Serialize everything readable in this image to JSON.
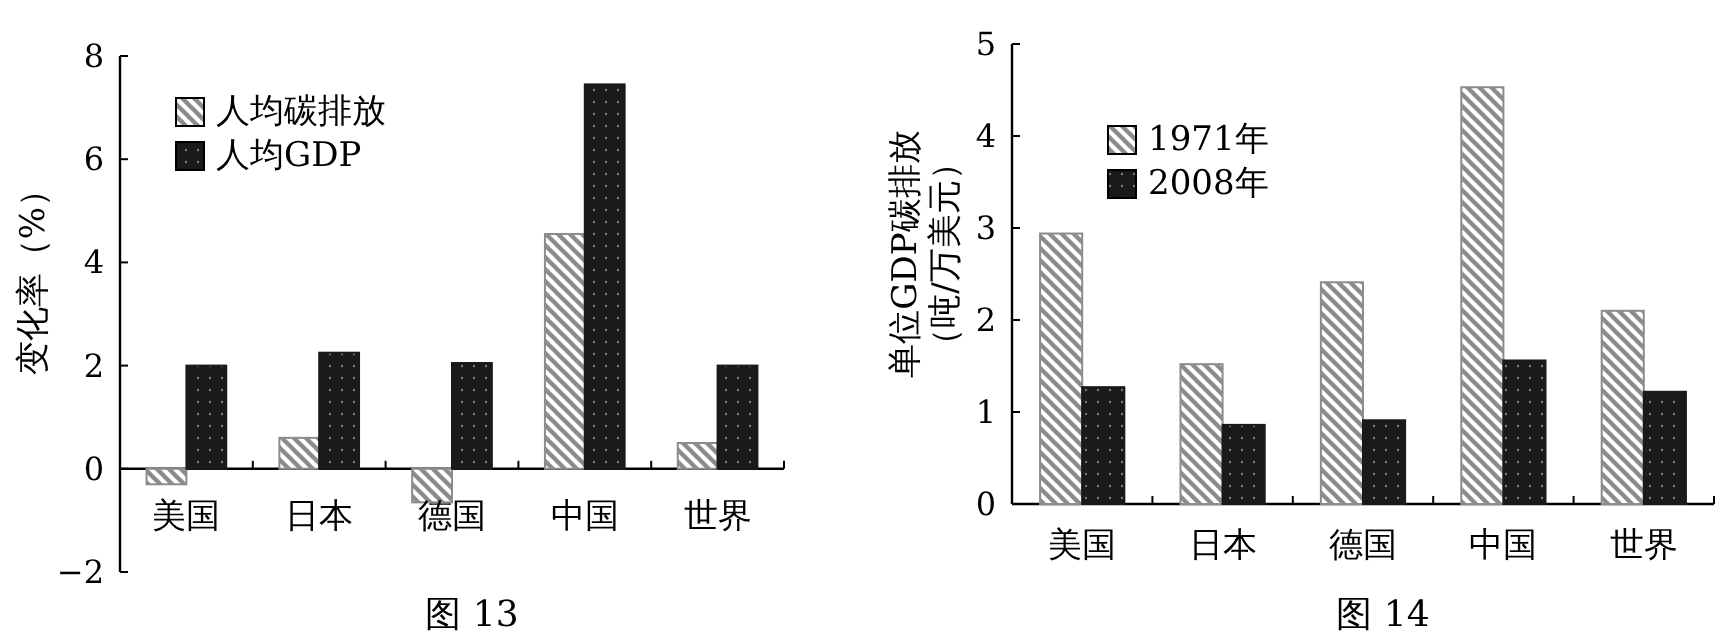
{
  "chart_data": [
    {
      "type": "bar",
      "title": "图 13",
      "ylabel": "变化率（%）",
      "categories": [
        "美国",
        "日本",
        "德国",
        "中国",
        "世界"
      ],
      "ylim": [
        -2,
        8
      ],
      "yticks": [
        -2,
        0,
        2,
        4,
        6,
        8
      ],
      "legend": "top left",
      "series": [
        {
          "name": "人均碳排放",
          "color": "#8c8c8c",
          "values": [
            -0.3,
            0.6,
            -0.65,
            4.55,
            0.5
          ]
        },
        {
          "name": "人均GDP",
          "color": "#1a1a1a",
          "values": [
            2.0,
            2.25,
            2.05,
            7.45,
            2.0
          ]
        }
      ]
    },
    {
      "type": "bar",
      "title": "图 14",
      "ylabel": "单位GDP碳排放（吨/万美元）",
      "categories": [
        "美国",
        "日本",
        "德国",
        "中国",
        "世界"
      ],
      "ylim": [
        0,
        5
      ],
      "yticks": [
        0,
        1,
        2,
        3,
        4,
        5
      ],
      "legend": "top left",
      "series": [
        {
          "name": "1971年",
          "color": "#8c8c8c",
          "values": [
            2.94,
            1.52,
            2.41,
            4.53,
            2.1
          ]
        },
        {
          "name": "2008年",
          "color": "#1a1a1a",
          "values": [
            1.27,
            0.86,
            0.91,
            1.56,
            1.22
          ]
        }
      ]
    }
  ]
}
